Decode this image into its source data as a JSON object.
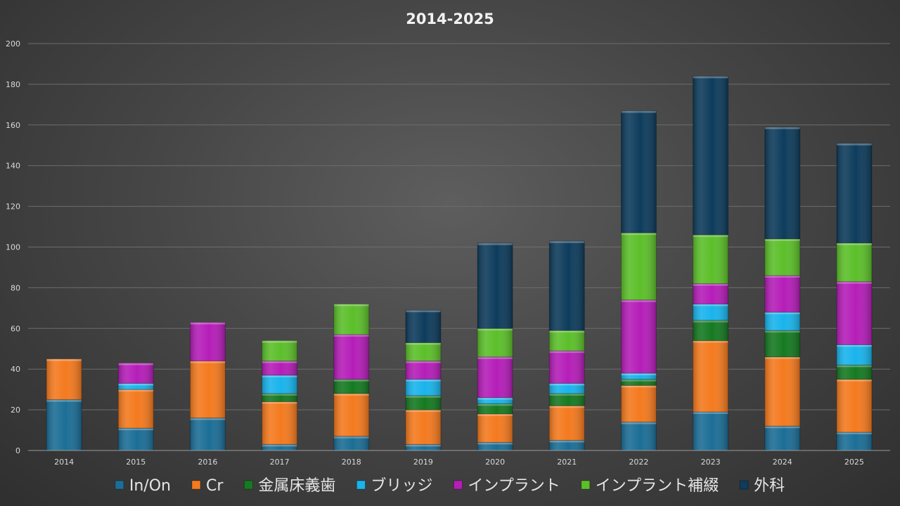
{
  "chart_data": {
    "type": "bar",
    "stacked": true,
    "title": "2014-2025",
    "xlabel": "",
    "ylabel": "",
    "ylim": [
      0,
      200
    ],
    "yticks": [
      0,
      20,
      40,
      60,
      80,
      100,
      120,
      140,
      160,
      180,
      200
    ],
    "grid": true,
    "legend": "bottom",
    "categories": [
      "2014",
      "2015",
      "2016",
      "2017",
      "2018",
      "2019",
      "2020",
      "2021",
      "2022",
      "2023",
      "2024",
      "2025"
    ],
    "series": [
      {
        "name": "In/On",
        "color": "#1c6e96",
        "values": [
          25,
          11,
          16,
          3,
          7,
          3,
          4,
          5,
          14,
          19,
          12,
          9
        ]
      },
      {
        "name": "Cr",
        "color": "#f47a1f",
        "values": [
          20,
          19,
          28,
          21,
          21,
          17,
          14,
          17,
          18,
          35,
          34,
          26
        ]
      },
      {
        "name": "金属床義歯",
        "color": "#167a22",
        "values": [
          0,
          0,
          0,
          4,
          7,
          7,
          5,
          6,
          3,
          10,
          13,
          7
        ]
      },
      {
        "name": "ブリッジ",
        "color": "#19b4ec",
        "values": [
          0,
          3,
          0,
          9,
          0,
          8,
          3,
          5,
          3,
          8,
          9,
          10
        ]
      },
      {
        "name": "インプラント",
        "color": "#b51eb8",
        "values": [
          0,
          10,
          19,
          7,
          22,
          9,
          20,
          16,
          36,
          10,
          18,
          31
        ]
      },
      {
        "name": "インプラント補綴",
        "color": "#5cbf2a",
        "values": [
          0,
          0,
          0,
          10,
          15,
          9,
          14,
          10,
          33,
          24,
          18,
          19
        ]
      },
      {
        "name": "外科",
        "color": "#0e3c5c",
        "values": [
          0,
          0,
          0,
          0,
          0,
          16,
          42,
          44,
          60,
          78,
          55,
          49
        ]
      }
    ]
  }
}
